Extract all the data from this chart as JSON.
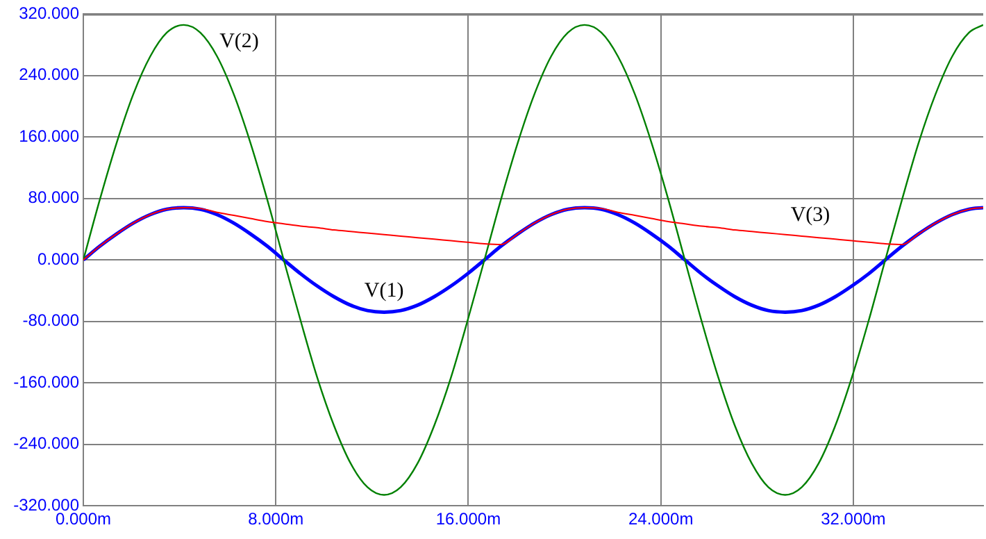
{
  "chart_data": {
    "type": "line",
    "x": [
      0,
      0.69,
      1.39,
      2.08,
      2.78,
      3.47,
      4.17,
      4.86,
      5.56,
      6.25,
      6.94,
      7.64,
      8.33,
      9.03,
      9.72,
      10.42,
      11.11,
      11.81,
      12.5,
      13.19,
      13.89,
      14.58,
      15.28,
      15.97,
      16.67,
      17.36,
      18.06,
      18.75,
      19.44,
      20.14,
      20.83,
      21.53,
      22.22,
      22.92,
      23.61,
      24.31,
      25,
      25.69,
      26.39,
      27.08,
      27.78,
      28.47,
      29.17,
      29.86,
      30.56,
      31.25,
      31.94,
      32.64,
      33.33,
      34.03,
      34.72,
      35.42,
      36.11,
      36.81,
      37.4
    ],
    "series": [
      {
        "name": "V(1)",
        "color": "#0000ff",
        "values": [
          0,
          18,
          34,
          48,
          59,
          66,
          68,
          66,
          59,
          48,
          34,
          18,
          0,
          -18,
          -34,
          -48,
          -59,
          -66,
          -68,
          -66,
          -59,
          -48,
          -34,
          -18,
          0,
          18,
          34,
          48,
          59,
          66,
          68,
          66,
          59,
          48,
          34,
          18,
          0,
          -18,
          -34,
          -48,
          -59,
          -66,
          -68,
          -66,
          -59,
          -48,
          -34,
          -18,
          0,
          18,
          34,
          48,
          59,
          66,
          68
        ]
      },
      {
        "name": "V(2)",
        "color": "#008000",
        "values": [
          0,
          79,
          153,
          216,
          265,
          296,
          306,
          296,
          265,
          216,
          153,
          79,
          0,
          -79,
          -153,
          -216,
          -265,
          -296,
          -306,
          -296,
          -265,
          -216,
          -153,
          -79,
          0,
          79,
          153,
          216,
          265,
          296,
          306,
          296,
          265,
          216,
          153,
          79,
          0,
          -79,
          -153,
          -216,
          -265,
          -296,
          -306,
          -296,
          -265,
          -216,
          -153,
          -79,
          0,
          79,
          153,
          216,
          265,
          296,
          306
        ]
      },
      {
        "name": "V(3)",
        "color": "#ff0000",
        "values": [
          0,
          18,
          34,
          48,
          59,
          66,
          68,
          67,
          62,
          58,
          54,
          50,
          47,
          44,
          42,
          39,
          37,
          35,
          33,
          31,
          29,
          27,
          25,
          23,
          21,
          20,
          34,
          48,
          59,
          66,
          68,
          67,
          62,
          58,
          54,
          50,
          47,
          44,
          42,
          39,
          37,
          35,
          33,
          31,
          29,
          27,
          25,
          23,
          21,
          20,
          34,
          48,
          59,
          66,
          68
        ]
      }
    ],
    "xlim": [
      0,
      37.4
    ],
    "xticks": [
      {
        "value": 0,
        "label": "0.000m"
      },
      {
        "value": 8,
        "label": "8.000m"
      },
      {
        "value": 16,
        "label": "16.000m"
      },
      {
        "value": 24,
        "label": "24.000m"
      },
      {
        "value": 32,
        "label": "32.000m"
      }
    ],
    "ylim": [
      -320,
      320
    ],
    "yticks": [
      {
        "value": -320,
        "label": "-320.000"
      },
      {
        "value": -240,
        "label": "-240.000"
      },
      {
        "value": -160,
        "label": "-160.000"
      },
      {
        "value": -80,
        "label": "-80.000"
      },
      {
        "value": 0,
        "label": "0.000"
      },
      {
        "value": 80,
        "label": "80.000"
      },
      {
        "value": 160,
        "label": "160.000"
      },
      {
        "value": 240,
        "label": "240.000"
      },
      {
        "value": 320,
        "label": "320.000"
      }
    ],
    "grid": true,
    "legend": false,
    "marker": "none",
    "line_style": "solid"
  }
}
